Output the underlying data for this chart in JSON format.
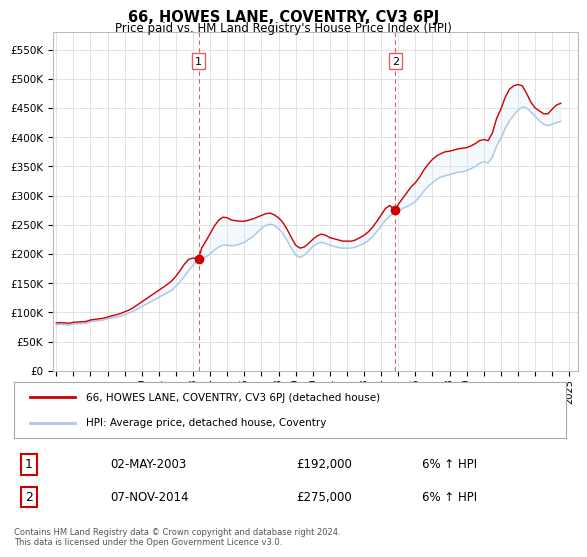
{
  "title": "66, HOWES LANE, COVENTRY, CV3 6PJ",
  "subtitle": "Price paid vs. HM Land Registry's House Price Index (HPI)",
  "ylim": [
    0,
    580000
  ],
  "yticks": [
    0,
    50000,
    100000,
    150000,
    200000,
    250000,
    300000,
    350000,
    400000,
    450000,
    500000,
    550000
  ],
  "ytick_labels": [
    "£0",
    "£50K",
    "£100K",
    "£150K",
    "£200K",
    "£250K",
    "£300K",
    "£350K",
    "£400K",
    "£450K",
    "£500K",
    "£550K"
  ],
  "xlim_start": 1994.8,
  "xlim_end": 2025.5,
  "xtick_years": [
    1995,
    1996,
    1997,
    1998,
    1999,
    2000,
    2001,
    2002,
    2003,
    2004,
    2005,
    2006,
    2007,
    2008,
    2009,
    2010,
    2011,
    2012,
    2013,
    2014,
    2015,
    2016,
    2017,
    2018,
    2019,
    2020,
    2021,
    2022,
    2023,
    2024,
    2025
  ],
  "hpi_color": "#A8C8E8",
  "price_color": "#CC0000",
  "dashed_color": "#E06060",
  "fill_color": "#D8ECF8",
  "grid_color": "#DDDDDD",
  "bg_color": "#FFFFFF",
  "sale1_year": 2003.33,
  "sale1_price": 192000,
  "sale2_year": 2014.83,
  "sale2_price": 275000,
  "legend_line1": "66, HOWES LANE, COVENTRY, CV3 6PJ (detached house)",
  "legend_line2": "HPI: Average price, detached house, Coventry",
  "table_row1": [
    "1",
    "02-MAY-2003",
    "£192,000",
    "6% ↑ HPI"
  ],
  "table_row2": [
    "2",
    "07-NOV-2014",
    "£275,000",
    "6% ↑ HPI"
  ],
  "footer": "Contains HM Land Registry data © Crown copyright and database right 2024.\nThis data is licensed under the Open Government Licence v3.0.",
  "hpi_data": [
    [
      1995.0,
      79000
    ],
    [
      1995.25,
      79500
    ],
    [
      1995.5,
      79000
    ],
    [
      1995.75,
      78500
    ],
    [
      1996.0,
      80000
    ],
    [
      1996.25,
      80500
    ],
    [
      1996.5,
      81000
    ],
    [
      1996.75,
      81500
    ],
    [
      1997.0,
      84000
    ],
    [
      1997.25,
      85000
    ],
    [
      1997.5,
      86000
    ],
    [
      1997.75,
      87000
    ],
    [
      1998.0,
      89000
    ],
    [
      1998.25,
      90500
    ],
    [
      1998.5,
      92000
    ],
    [
      1998.75,
      93500
    ],
    [
      1999.0,
      96000
    ],
    [
      1999.25,
      99000
    ],
    [
      1999.5,
      102000
    ],
    [
      1999.75,
      106000
    ],
    [
      2000.0,
      110000
    ],
    [
      2000.25,
      114000
    ],
    [
      2000.5,
      118000
    ],
    [
      2000.75,
      122000
    ],
    [
      2001.0,
      126000
    ],
    [
      2001.25,
      130000
    ],
    [
      2001.5,
      134000
    ],
    [
      2001.75,
      138000
    ],
    [
      2002.0,
      145000
    ],
    [
      2002.25,
      153000
    ],
    [
      2002.5,
      162000
    ],
    [
      2002.75,
      172000
    ],
    [
      2003.0,
      181000
    ],
    [
      2003.25,
      188000
    ],
    [
      2003.5,
      192000
    ],
    [
      2003.75,
      195000
    ],
    [
      2004.0,
      200000
    ],
    [
      2004.25,
      207000
    ],
    [
      2004.5,
      212000
    ],
    [
      2004.75,
      215000
    ],
    [
      2005.0,
      215000
    ],
    [
      2005.25,
      214000
    ],
    [
      2005.5,
      215000
    ],
    [
      2005.75,
      217000
    ],
    [
      2006.0,
      220000
    ],
    [
      2006.25,
      225000
    ],
    [
      2006.5,
      230000
    ],
    [
      2006.75,
      237000
    ],
    [
      2007.0,
      244000
    ],
    [
      2007.25,
      249000
    ],
    [
      2007.5,
      251000
    ],
    [
      2007.75,
      249000
    ],
    [
      2008.0,
      243000
    ],
    [
      2008.25,
      235000
    ],
    [
      2008.5,
      223000
    ],
    [
      2008.75,
      210000
    ],
    [
      2009.0,
      198000
    ],
    [
      2009.25,
      194000
    ],
    [
      2009.5,
      198000
    ],
    [
      2009.75,
      205000
    ],
    [
      2010.0,
      213000
    ],
    [
      2010.25,
      218000
    ],
    [
      2010.5,
      220000
    ],
    [
      2010.75,
      218000
    ],
    [
      2011.0,
      215000
    ],
    [
      2011.25,
      213000
    ],
    [
      2011.5,
      211000
    ],
    [
      2011.75,
      210000
    ],
    [
      2012.0,
      210000
    ],
    [
      2012.25,
      210000
    ],
    [
      2012.5,
      212000
    ],
    [
      2012.75,
      215000
    ],
    [
      2013.0,
      218000
    ],
    [
      2013.25,
      223000
    ],
    [
      2013.5,
      230000
    ],
    [
      2013.75,
      239000
    ],
    [
      2014.0,
      248000
    ],
    [
      2014.25,
      258000
    ],
    [
      2014.5,
      265000
    ],
    [
      2014.75,
      270000
    ],
    [
      2015.0,
      274000
    ],
    [
      2015.25,
      278000
    ],
    [
      2015.5,
      281000
    ],
    [
      2015.75,
      285000
    ],
    [
      2016.0,
      290000
    ],
    [
      2016.25,
      298000
    ],
    [
      2016.5,
      308000
    ],
    [
      2016.75,
      316000
    ],
    [
      2017.0,
      322000
    ],
    [
      2017.25,
      328000
    ],
    [
      2017.5,
      332000
    ],
    [
      2017.75,
      334000
    ],
    [
      2018.0,
      336000
    ],
    [
      2018.25,
      338000
    ],
    [
      2018.5,
      340000
    ],
    [
      2018.75,
      341000
    ],
    [
      2019.0,
      343000
    ],
    [
      2019.25,
      346000
    ],
    [
      2019.5,
      350000
    ],
    [
      2019.75,
      355000
    ],
    [
      2020.0,
      358000
    ],
    [
      2020.25,
      356000
    ],
    [
      2020.5,
      366000
    ],
    [
      2020.75,
      385000
    ],
    [
      2021.0,
      398000
    ],
    [
      2021.25,
      415000
    ],
    [
      2021.5,
      428000
    ],
    [
      2021.75,
      438000
    ],
    [
      2022.0,
      446000
    ],
    [
      2022.25,
      452000
    ],
    [
      2022.5,
      450000
    ],
    [
      2022.75,
      443000
    ],
    [
      2023.0,
      436000
    ],
    [
      2023.25,
      428000
    ],
    [
      2023.5,
      422000
    ],
    [
      2023.75,
      420000
    ],
    [
      2024.0,
      422000
    ],
    [
      2024.25,
      425000
    ],
    [
      2024.5,
      427000
    ]
  ],
  "price_data": [
    [
      1995.0,
      82000
    ],
    [
      1995.25,
      82500
    ],
    [
      1995.5,
      82000
    ],
    [
      1995.75,
      81500
    ],
    [
      1996.0,
      83000
    ],
    [
      1996.25,
      83500
    ],
    [
      1996.5,
      84000
    ],
    [
      1996.75,
      84500
    ],
    [
      1997.0,
      87000
    ],
    [
      1997.25,
      88000
    ],
    [
      1997.5,
      89000
    ],
    [
      1997.75,
      90000
    ],
    [
      1998.0,
      92000
    ],
    [
      1998.25,
      94000
    ],
    [
      1998.5,
      96000
    ],
    [
      1998.75,
      98000
    ],
    [
      1999.0,
      101000
    ],
    [
      1999.25,
      104000
    ],
    [
      1999.5,
      108000
    ],
    [
      1999.75,
      113000
    ],
    [
      2000.0,
      118000
    ],
    [
      2000.25,
      123000
    ],
    [
      2000.5,
      128000
    ],
    [
      2000.75,
      133000
    ],
    [
      2001.0,
      138000
    ],
    [
      2001.25,
      143000
    ],
    [
      2001.5,
      148000
    ],
    [
      2001.75,
      154000
    ],
    [
      2002.0,
      162000
    ],
    [
      2002.25,
      172000
    ],
    [
      2002.5,
      183000
    ],
    [
      2002.75,
      191000
    ],
    [
      2003.0,
      193000
    ],
    [
      2003.25,
      192000
    ],
    [
      2003.33,
      192000
    ],
    [
      2003.5,
      210000
    ],
    [
      2003.75,
      222000
    ],
    [
      2004.0,
      235000
    ],
    [
      2004.25,
      248000
    ],
    [
      2004.5,
      258000
    ],
    [
      2004.75,
      263000
    ],
    [
      2005.0,
      262000
    ],
    [
      2005.25,
      258000
    ],
    [
      2005.5,
      257000
    ],
    [
      2005.75,
      256000
    ],
    [
      2006.0,
      256000
    ],
    [
      2006.25,
      258000
    ],
    [
      2006.5,
      260000
    ],
    [
      2006.75,
      263000
    ],
    [
      2007.0,
      266000
    ],
    [
      2007.25,
      269000
    ],
    [
      2007.5,
      270000
    ],
    [
      2007.75,
      267000
    ],
    [
      2008.0,
      262000
    ],
    [
      2008.25,
      254000
    ],
    [
      2008.5,
      242000
    ],
    [
      2008.75,
      228000
    ],
    [
      2009.0,
      215000
    ],
    [
      2009.25,
      210000
    ],
    [
      2009.5,
      212000
    ],
    [
      2009.75,
      218000
    ],
    [
      2010.0,
      225000
    ],
    [
      2010.25,
      231000
    ],
    [
      2010.5,
      234000
    ],
    [
      2010.75,
      232000
    ],
    [
      2011.0,
      228000
    ],
    [
      2011.25,
      226000
    ],
    [
      2011.5,
      224000
    ],
    [
      2011.75,
      222000
    ],
    [
      2012.0,
      222000
    ],
    [
      2012.25,
      222000
    ],
    [
      2012.5,
      224000
    ],
    [
      2012.75,
      228000
    ],
    [
      2013.0,
      232000
    ],
    [
      2013.25,
      238000
    ],
    [
      2013.5,
      246000
    ],
    [
      2013.75,
      256000
    ],
    [
      2014.0,
      267000
    ],
    [
      2014.25,
      278000
    ],
    [
      2014.5,
      283000
    ],
    [
      2014.75,
      277000
    ],
    [
      2014.83,
      275000
    ],
    [
      2015.0,
      285000
    ],
    [
      2015.25,
      295000
    ],
    [
      2015.5,
      305000
    ],
    [
      2015.75,
      315000
    ],
    [
      2016.0,
      322000
    ],
    [
      2016.25,
      332000
    ],
    [
      2016.5,
      344000
    ],
    [
      2016.75,
      354000
    ],
    [
      2017.0,
      362000
    ],
    [
      2017.25,
      368000
    ],
    [
      2017.5,
      372000
    ],
    [
      2017.75,
      375000
    ],
    [
      2018.0,
      376000
    ],
    [
      2018.25,
      378000
    ],
    [
      2018.5,
      380000
    ],
    [
      2018.75,
      381000
    ],
    [
      2019.0,
      382000
    ],
    [
      2019.25,
      385000
    ],
    [
      2019.5,
      389000
    ],
    [
      2019.75,
      394000
    ],
    [
      2020.0,
      396000
    ],
    [
      2020.25,
      394000
    ],
    [
      2020.5,
      407000
    ],
    [
      2020.75,
      432000
    ],
    [
      2021.0,
      448000
    ],
    [
      2021.25,
      468000
    ],
    [
      2021.5,
      482000
    ],
    [
      2021.75,
      488000
    ],
    [
      2022.0,
      490000
    ],
    [
      2022.25,
      488000
    ],
    [
      2022.5,
      475000
    ],
    [
      2022.75,
      460000
    ],
    [
      2023.0,
      450000
    ],
    [
      2023.25,
      445000
    ],
    [
      2023.5,
      440000
    ],
    [
      2023.75,
      440000
    ],
    [
      2024.0,
      448000
    ],
    [
      2024.25,
      455000
    ],
    [
      2024.5,
      458000
    ]
  ]
}
